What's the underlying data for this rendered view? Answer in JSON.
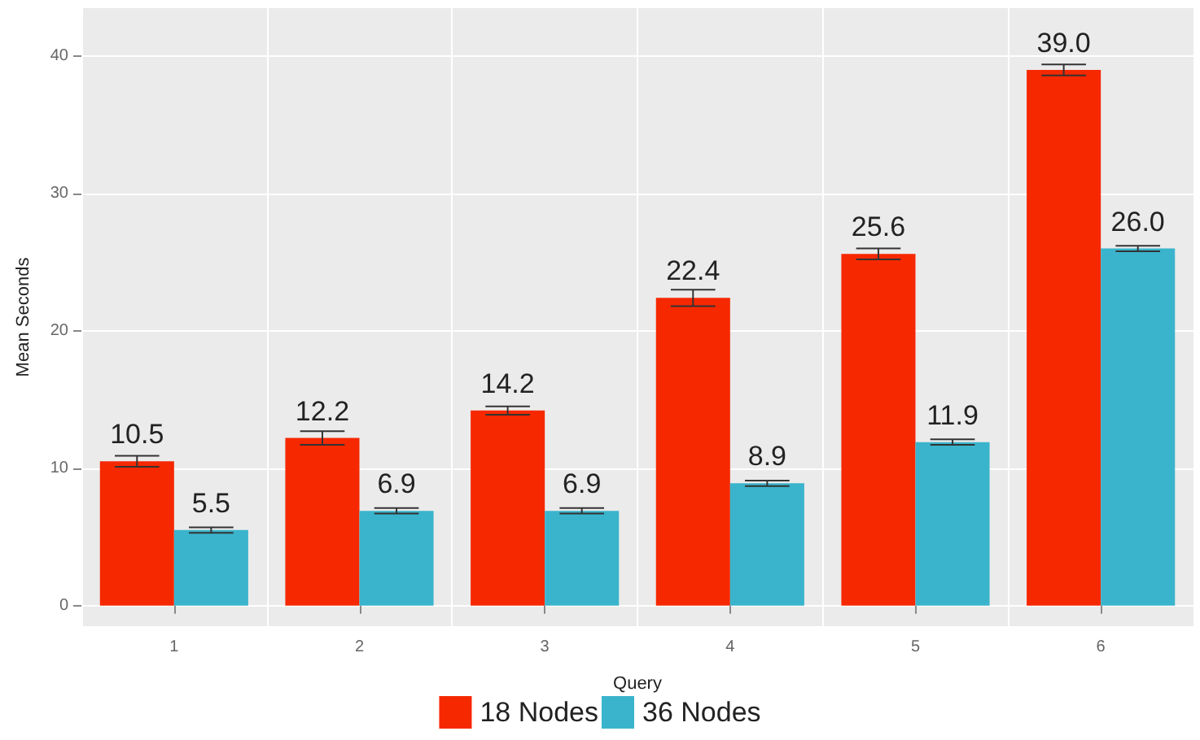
{
  "chart_data": {
    "type": "bar",
    "xlabel": "Query",
    "ylabel": "Mean Seconds",
    "categories": [
      "1",
      "2",
      "3",
      "4",
      "5",
      "6"
    ],
    "series": [
      {
        "name": "18 Nodes",
        "color": "#f62800",
        "values": [
          10.5,
          12.2,
          14.2,
          22.4,
          25.6,
          39.0
        ],
        "errors": [
          0.4,
          0.5,
          0.3,
          0.6,
          0.4,
          0.4
        ],
        "value_labels": [
          "10.5",
          "12.2",
          "14.2",
          "22.4",
          "25.6",
          "39.0"
        ]
      },
      {
        "name": "36 Nodes",
        "color": "#3ab4cc",
        "values": [
          5.5,
          6.9,
          6.9,
          8.9,
          11.9,
          26.0
        ],
        "errors": [
          0.2,
          0.2,
          0.2,
          0.2,
          0.2,
          0.2
        ],
        "value_labels": [
          "5.5",
          "6.9",
          "6.9",
          "8.9",
          "11.9",
          "26.0"
        ]
      }
    ],
    "ylim": [
      -1.5,
      43.5
    ],
    "yticks": [
      0,
      10,
      20,
      30,
      40
    ],
    "grid": true,
    "legend": "bottom"
  }
}
